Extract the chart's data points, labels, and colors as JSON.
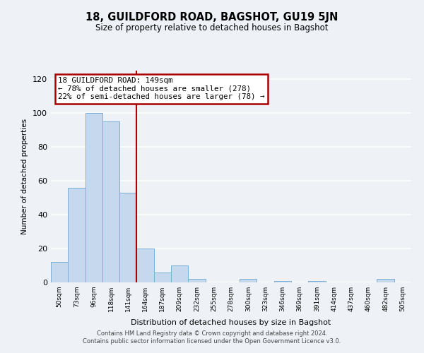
{
  "title": "18, GUILDFORD ROAD, BAGSHOT, GU19 5JN",
  "subtitle": "Size of property relative to detached houses in Bagshot",
  "xlabel": "Distribution of detached houses by size in Bagshot",
  "ylabel": "Number of detached properties",
  "bar_labels": [
    "50sqm",
    "73sqm",
    "96sqm",
    "118sqm",
    "141sqm",
    "164sqm",
    "187sqm",
    "209sqm",
    "232sqm",
    "255sqm",
    "278sqm",
    "300sqm",
    "323sqm",
    "346sqm",
    "369sqm",
    "391sqm",
    "414sqm",
    "437sqm",
    "460sqm",
    "482sqm",
    "505sqm"
  ],
  "bar_values": [
    12,
    56,
    100,
    95,
    53,
    20,
    6,
    10,
    2,
    0,
    0,
    2,
    0,
    1,
    0,
    1,
    0,
    0,
    0,
    2,
    0
  ],
  "bar_color": "#c5d8ed",
  "bar_edge_color": "#7aaed4",
  "ylim": [
    0,
    125
  ],
  "yticks": [
    0,
    20,
    40,
    60,
    80,
    100,
    120
  ],
  "annotation_line1": "18 GUILDFORD ROAD: 149sqm",
  "annotation_line2": "← 78% of detached houses are smaller (278)",
  "annotation_line3": "22% of semi-detached houses are larger (78) →",
  "vline_color": "#aa0000",
  "vline_x_index": 4.5,
  "annotation_box_color": "#ffffff",
  "annotation_box_edge_color": "#aa0000",
  "footer_line1": "Contains HM Land Registry data © Crown copyright and database right 2024.",
  "footer_line2": "Contains public sector information licensed under the Open Government Licence v3.0.",
  "background_color": "#eef2f7"
}
